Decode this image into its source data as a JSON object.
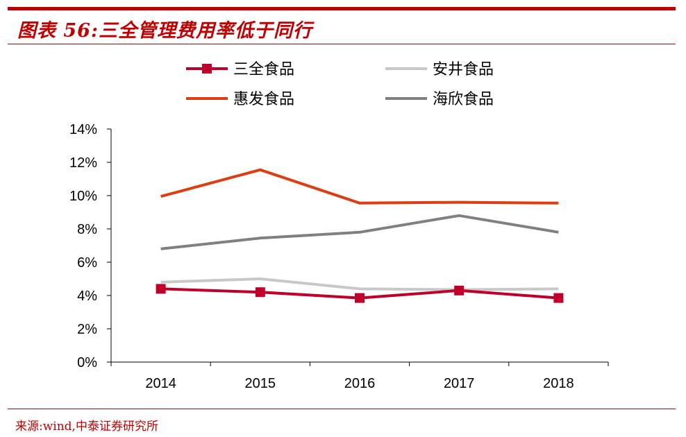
{
  "figure": {
    "title": "图表 56:三全管理费用率低于同行",
    "source": "来源:wind,中泰证券研究所"
  },
  "colors": {
    "accent": "#c00000"
  },
  "chart_data": {
    "type": "line",
    "categories": [
      "2014",
      "2015",
      "2016",
      "2017",
      "2018"
    ],
    "ylim": [
      0,
      14
    ],
    "yticks": [
      "0%",
      "2%",
      "4%",
      "6%",
      "8%",
      "10%",
      "12%",
      "14%"
    ],
    "grid": false,
    "legend_position": "top",
    "series": [
      {
        "name": "三全食品",
        "values": [
          4.4,
          4.2,
          3.85,
          4.3,
          3.85
        ],
        "color": "#c0002a",
        "marker": "square"
      },
      {
        "name": "安井食品",
        "values": [
          4.8,
          5.0,
          4.4,
          4.35,
          4.4
        ],
        "color": "#c8c8c8",
        "marker": "none"
      },
      {
        "name": "惠发食品",
        "values": [
          9.95,
          11.55,
          9.55,
          9.6,
          9.55
        ],
        "color": "#e03c10",
        "marker": "none"
      },
      {
        "name": "海欣食品",
        "values": [
          6.8,
          7.45,
          7.8,
          8.8,
          7.8
        ],
        "color": "#808080",
        "marker": "none"
      }
    ]
  }
}
